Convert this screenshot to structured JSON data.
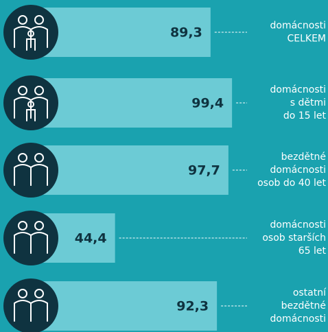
{
  "chart_data": {
    "type": "bar",
    "categories": [
      [
        "domácnosti",
        "CELKEM"
      ],
      [
        "domácnosti",
        "s dětmi",
        "do 15 let"
      ],
      [
        "bezdětné",
        "domácnosti",
        "osob do 40 let"
      ],
      [
        "domácnosti",
        "osob starších",
        "65 let"
      ],
      [
        "ostatní",
        "bezdětné",
        "domácnosti"
      ]
    ],
    "values": [
      89.3,
      99.4,
      97.7,
      44.4,
      92.3
    ],
    "value_labels": [
      "89,3",
      "99,4",
      "97,7",
      "44,4",
      "92,3"
    ],
    "color": "#6ccbd5"
  }
}
